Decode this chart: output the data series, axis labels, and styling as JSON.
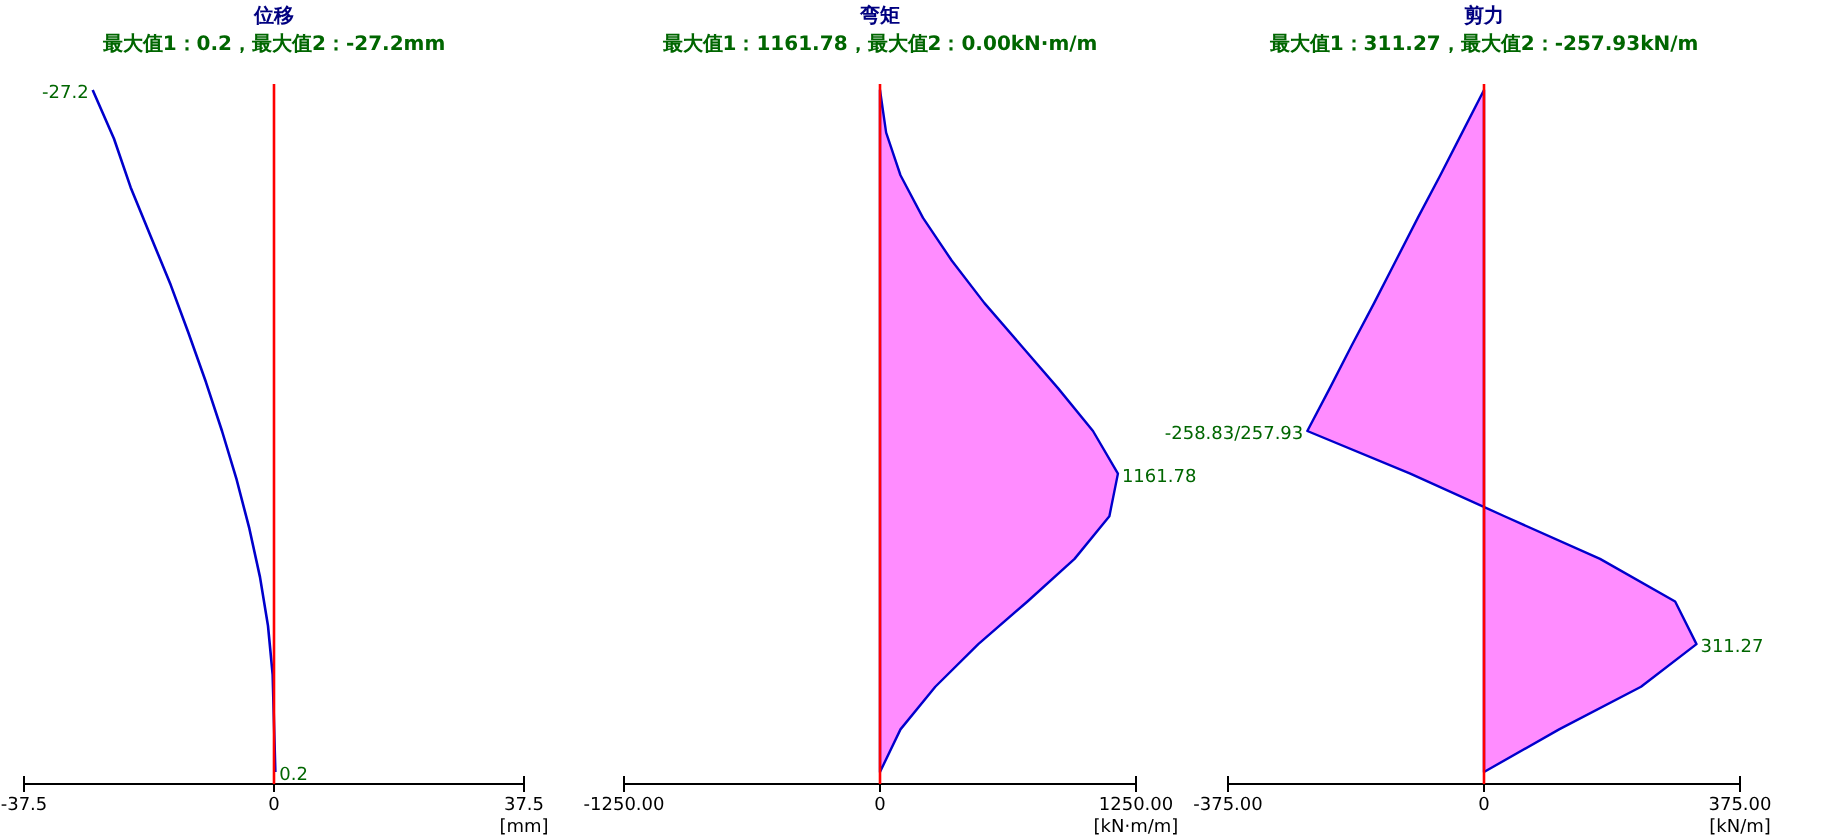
{
  "chart_data": [
    {
      "type": "line",
      "orientation": "horizontal",
      "title": "位移",
      "subtitle": "最大值1：0.2，最大值2：-27.2mm",
      "xlabel": "[mm]",
      "categories": [
        null,
        null,
        null,
        null,
        null,
        null,
        null,
        null,
        null,
        null,
        null,
        null,
        null,
        null,
        null
      ],
      "series": [
        {
          "color": "#0000cc",
          "values": [
            -27.2,
            -24,
            -21.5,
            -18.5,
            -15.5,
            -12.8,
            -10.2,
            -7.8,
            -5.6,
            -3.7,
            -2.1,
            -0.9,
            -0.2,
            0,
            0.2
          ],
          "value_labels": [
            "-27.2",
            null,
            null,
            null,
            null,
            null,
            null,
            null,
            null,
            null,
            null,
            null,
            null,
            null,
            "0.2"
          ]
        }
      ],
      "xlim": [
        -37.5,
        37.5
      ],
      "xticks": [
        -37.5,
        0,
        37.5
      ],
      "ref_lines": [
        {
          "axis": "x",
          "value": 0,
          "color": "#ff0000"
        }
      ]
    },
    {
      "type": "area",
      "orientation": "horizontal",
      "title": "弯矩",
      "subtitle": "最大值1：1161.78，最大值2：0.00kN·m/m",
      "xlabel": "[kN·m/m]",
      "categories": [
        null,
        null,
        null,
        null,
        null,
        null,
        null,
        null,
        null,
        null,
        null,
        null,
        null,
        null,
        null,
        null,
        null
      ],
      "series": [
        {
          "color": "#ff00ff",
          "values": [
            0,
            30,
            100,
            210,
            350,
            510,
            690,
            870,
            1040,
            1161.78,
            1120,
            950,
            720,
            480,
            270,
            100,
            0
          ],
          "value_labels": [
            null,
            null,
            null,
            null,
            null,
            null,
            null,
            null,
            null,
            "1161.78",
            null,
            null,
            null,
            null,
            null,
            null,
            null
          ]
        }
      ],
      "xlim": [
        -1250,
        1250
      ],
      "xticks": [
        {
          "value": -1250,
          "label": "-1250.00"
        },
        0,
        {
          "value": 1250,
          "label": "1250.00"
        }
      ],
      "ref_lines": [
        {
          "axis": "x",
          "value": 0,
          "color": "#ff0000"
        }
      ]
    },
    {
      "type": "area",
      "orientation": "horizontal",
      "title": "剪力",
      "subtitle": "最大值1：311.27，最大值2：-257.93kN/m",
      "xlabel": "[kN/m]",
      "categories": [
        null,
        null,
        null,
        null,
        null,
        null,
        null,
        null,
        null,
        null,
        null,
        null,
        null,
        null,
        null,
        null,
        null
      ],
      "series": [
        {
          "color": "#ff00ff",
          "values": [
            0,
            -32,
            -64,
            -97,
            -129,
            -161,
            -194,
            -226,
            -258.83,
            -108,
            30,
            170,
            280,
            311.27,
            230,
            110,
            0
          ],
          "value_labels": [
            null,
            null,
            null,
            null,
            null,
            null,
            null,
            null,
            "-258.83/257.93",
            null,
            null,
            null,
            null,
            "311.27",
            null,
            null,
            null
          ]
        }
      ],
      "xlim": [
        -375,
        375
      ],
      "xticks": [
        {
          "value": -375,
          "label": "-375.00"
        },
        0,
        {
          "value": 375,
          "label": "375.00"
        }
      ],
      "ref_lines": [
        {
          "axis": "x",
          "value": 0,
          "color": "#ff0000"
        }
      ]
    }
  ]
}
